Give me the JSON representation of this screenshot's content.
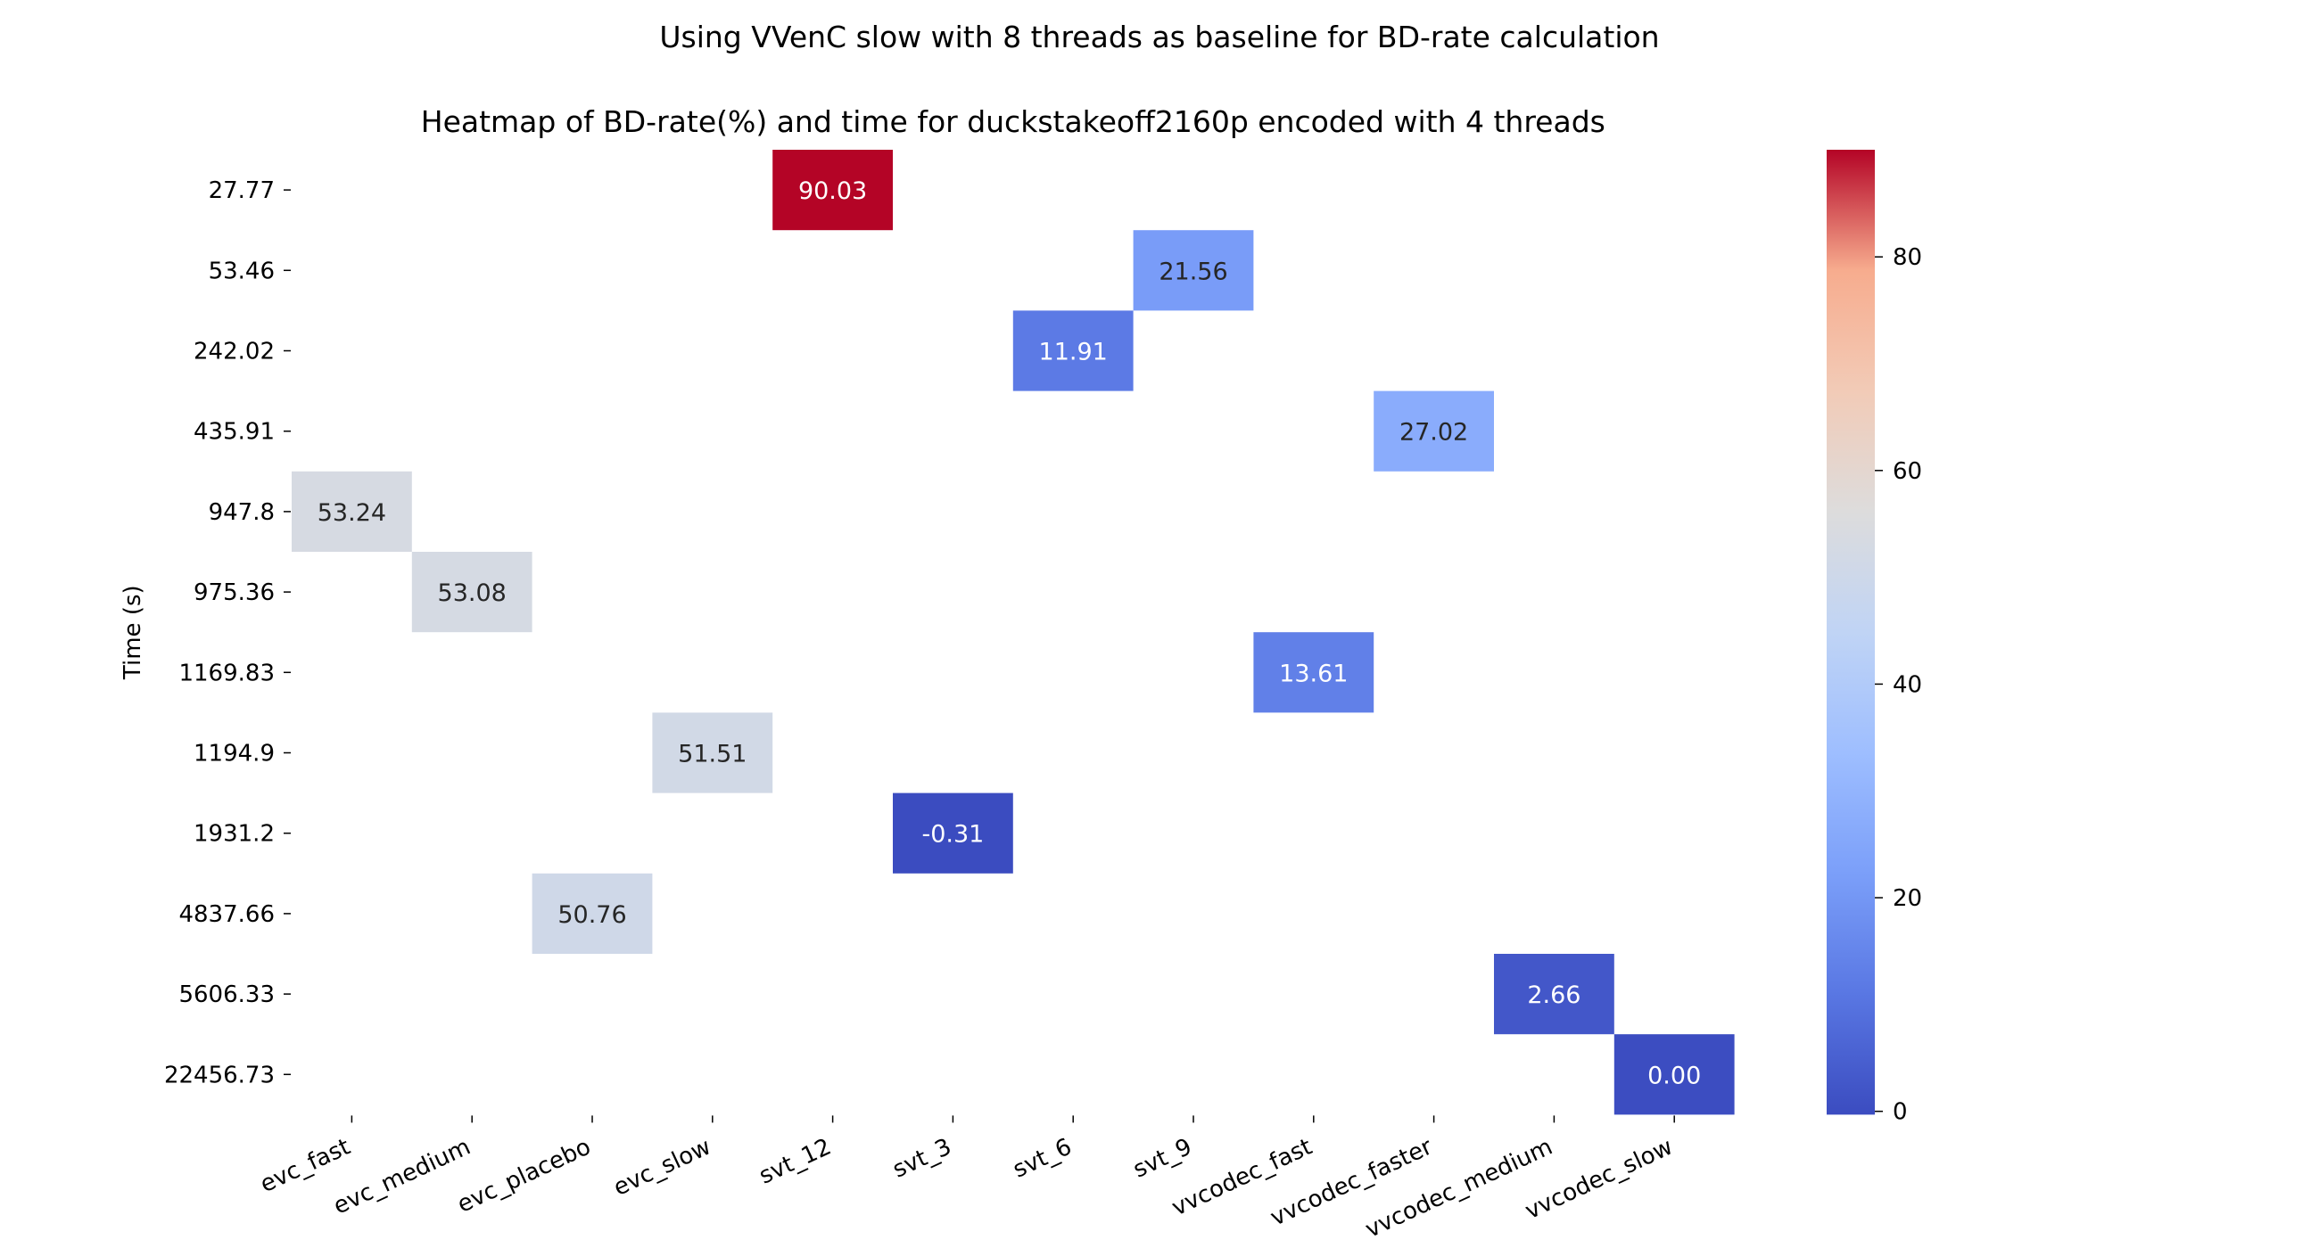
{
  "suptitle": "Using VVenC slow with 8 threads as baseline for BD-rate calculation",
  "chart_data": {
    "type": "heatmap",
    "title": "Heatmap of BD-rate(%) and time for duckstakeoff2160p encoded with 4 threads",
    "xlabel": "",
    "ylabel": "Time (s)",
    "x_categories": [
      "evc_fast",
      "evc_medium",
      "evc_placebo",
      "evc_slow",
      "svt_12",
      "svt_3",
      "svt_6",
      "svt_9",
      "vvcodec_fast",
      "vvcodec_faster",
      "vvcodec_medium",
      "vvcodec_slow"
    ],
    "y_categories": [
      "27.77",
      "53.46",
      "242.02",
      "435.91",
      "947.8",
      "975.36",
      "1169.83",
      "1194.9",
      "1931.2",
      "4837.66",
      "5606.33",
      "22456.73"
    ],
    "cells": [
      {
        "x": "svt_12",
        "y": "27.77",
        "value": 90.03,
        "label": "90.03"
      },
      {
        "x": "svt_9",
        "y": "53.46",
        "value": 21.56,
        "label": "21.56"
      },
      {
        "x": "svt_6",
        "y": "242.02",
        "value": 11.91,
        "label": "11.91"
      },
      {
        "x": "vvcodec_faster",
        "y": "435.91",
        "value": 27.02,
        "label": "27.02"
      },
      {
        "x": "evc_fast",
        "y": "947.8",
        "value": 53.24,
        "label": "53.24"
      },
      {
        "x": "evc_medium",
        "y": "975.36",
        "value": 53.08,
        "label": "53.08"
      },
      {
        "x": "vvcodec_fast",
        "y": "1169.83",
        "value": 13.61,
        "label": "13.61"
      },
      {
        "x": "evc_slow",
        "y": "1194.9",
        "value": 51.51,
        "label": "51.51"
      },
      {
        "x": "svt_3",
        "y": "1931.2",
        "value": -0.31,
        "label": "-0.31"
      },
      {
        "x": "evc_placebo",
        "y": "4837.66",
        "value": 50.76,
        "label": "50.76"
      },
      {
        "x": "vvcodec_medium",
        "y": "5606.33",
        "value": 2.66,
        "label": "2.66"
      },
      {
        "x": "vvcodec_slow",
        "y": "22456.73",
        "value": 0.0,
        "label": "0.00"
      }
    ],
    "colormap": "coolwarm",
    "colorbar": {
      "vmin": -0.31,
      "vmax": 90.03,
      "ticks": [
        0,
        20,
        40,
        60,
        80
      ]
    },
    "grid": false,
    "legend": "colorbar-right"
  }
}
